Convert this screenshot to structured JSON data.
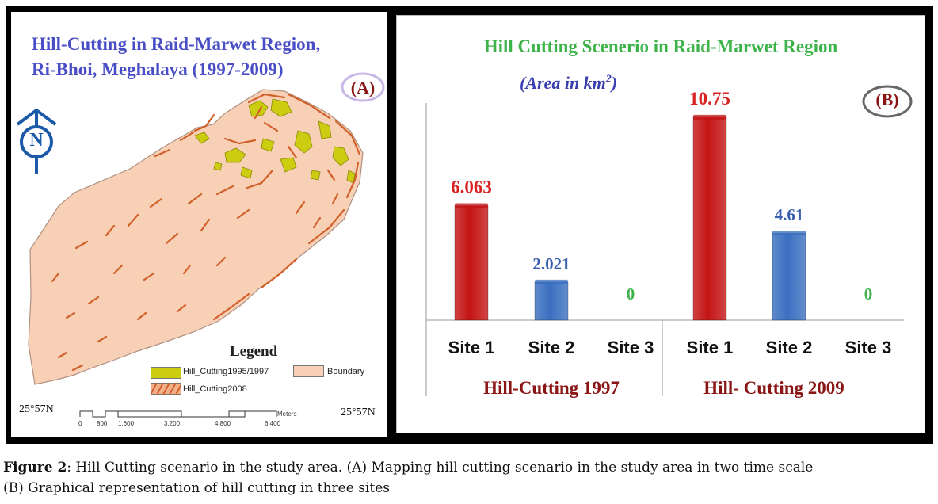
{
  "panel_a": {
    "title_line1": "Hill-Cutting in Raid-Marwet Region,",
    "title_line2": "Ri-Bhoi, Meghalaya (1997-2009)",
    "label": "(A)",
    "north_letter": "N",
    "legend": {
      "title": "Legend",
      "items": [
        "Hill_Cutting1995/1997",
        "Boundary",
        "Hill_Cutting2008"
      ]
    },
    "coord_left": "25°57N",
    "coord_right": "25°57N",
    "scale_unit": "Meters",
    "scale_ticks": [
      "0",
      "800",
      "1,600",
      "3,200",
      "4,800",
      "6,400"
    ],
    "colors": {
      "boundary": "#f7d0b6",
      "hill_1997": "#cccc10",
      "hill_2008": "#e0773a",
      "title": "#4a4ec6"
    }
  },
  "panel_b": {
    "title": "Hill Cutting Scenerio in Raid-Marwet Region",
    "unit_text": "(Area in km",
    "unit_sup": "2",
    "unit_close": ")",
    "label": "(B)"
  },
  "chart_data": {
    "type": "bar",
    "title": "Hill Cutting Scenerio in Raid-Marwet Region",
    "ylabel": "(Area in km2)",
    "groups": [
      {
        "name": "Hill-Cutting 1997",
        "categories": [
          "Site 1",
          "Site 2",
          "Site 3"
        ],
        "values": [
          6.063,
          2.021,
          0
        ],
        "value_labels": [
          "6.063",
          "2.021",
          "0"
        ]
      },
      {
        "name": "Hill- Cutting 2009",
        "categories": [
          "Site 1",
          "Site 2",
          "Site 3"
        ],
        "values": [
          10.75,
          4.61,
          0
        ],
        "value_labels": [
          "10.75",
          "4.61",
          "0"
        ]
      }
    ],
    "bar_colors": [
      "#c41414",
      "#3a6fc0",
      "#3db34a"
    ],
    "label_colors": [
      "#d92222",
      "#3a5fb0",
      "#3db34a"
    ],
    "group_label_color": "#8a1515",
    "ylim": [
      0,
      11.5
    ],
    "grid": false
  },
  "caption": {
    "label": "Figure 2",
    "text": ": Hill Cutting scenario in the study area. (A) Mapping hill cutting scenario in the study area in two time scale",
    "line2": "(B) Graphical representation of hill cutting in three sites"
  }
}
